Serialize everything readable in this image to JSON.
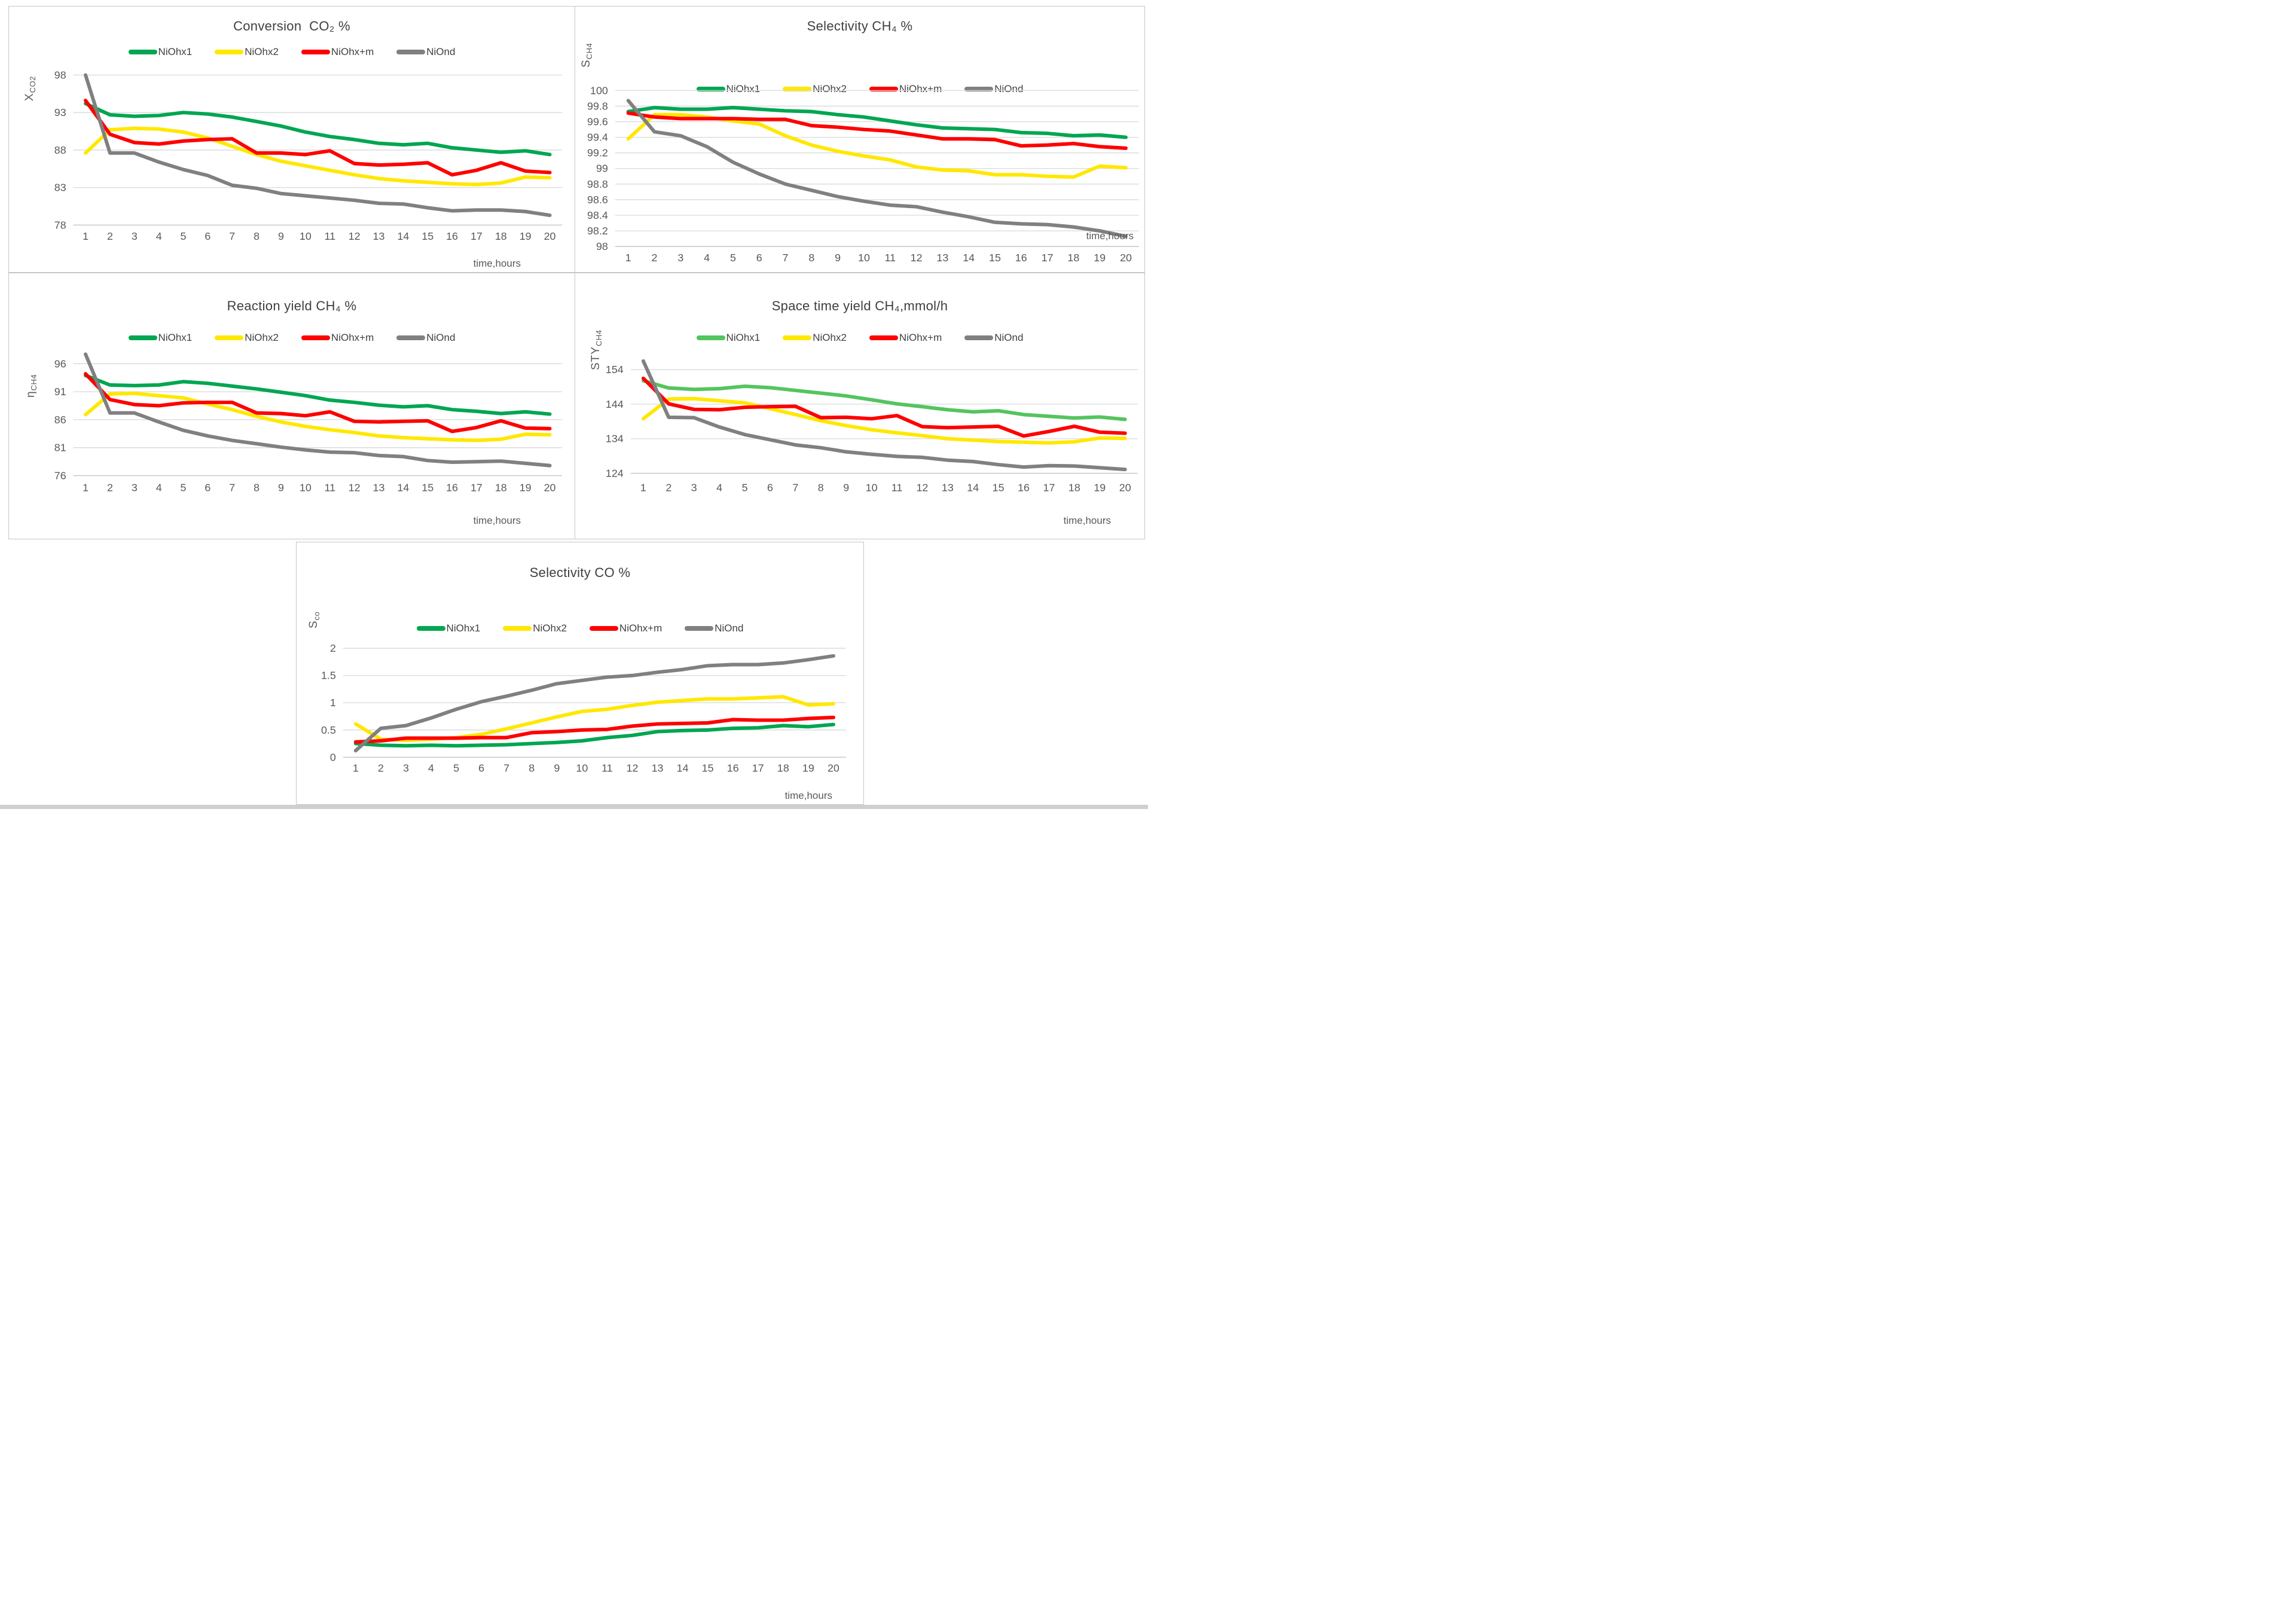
{
  "page": {
    "background": "#ffffff",
    "bottom_strip_color": "#cfcfcf"
  },
  "chart_data": [
    {
      "type": "line",
      "title": "Conversion  CO₂ %",
      "ylabel_main": "X",
      "ylabel_sub": "CO2",
      "xlabel": "time,hours",
      "x": [
        1,
        2,
        3,
        4,
        5,
        6,
        7,
        8,
        9,
        10,
        11,
        12,
        13,
        14,
        15,
        16,
        17,
        18,
        19,
        20
      ],
      "y_ticks": [
        "98",
        "93",
        "88",
        "83",
        "78"
      ],
      "ylim": [
        78,
        98
      ],
      "grid": true,
      "legend_position": "top",
      "series": [
        {
          "name": "NiOhx1",
          "color": "#00A651",
          "values": [
            94.2,
            92.7,
            92.5,
            92.6,
            93.0,
            92.8,
            92.4,
            91.8,
            91.2,
            90.4,
            89.8,
            89.4,
            88.9,
            88.7,
            88.9,
            88.3,
            88.0,
            87.7,
            87.9,
            87.4
          ]
        },
        {
          "name": "NiOhx2",
          "color": "#FFE800",
          "values": [
            87.6,
            90.7,
            90.9,
            90.8,
            90.4,
            89.6,
            88.5,
            87.4,
            86.5,
            85.9,
            85.3,
            84.7,
            84.2,
            83.9,
            83.7,
            83.5,
            83.4,
            83.6,
            84.4,
            84.3
          ]
        },
        {
          "name": "NiOhx+m",
          "color": "#FF0000",
          "values": [
            94.6,
            90.1,
            89.0,
            88.8,
            89.2,
            89.4,
            89.5,
            87.6,
            87.6,
            87.4,
            87.9,
            86.2,
            86.0,
            86.1,
            86.3,
            84.7,
            85.3,
            86.3,
            85.2,
            85.0
          ]
        },
        {
          "name": "NiOnd",
          "color": "#808080",
          "values": [
            98.0,
            87.6,
            87.6,
            86.4,
            85.4,
            84.6,
            83.3,
            82.9,
            82.2,
            81.9,
            81.6,
            81.3,
            80.9,
            80.8,
            80.3,
            79.9,
            80.0,
            80.0,
            79.8,
            79.3
          ]
        }
      ]
    },
    {
      "type": "line",
      "title": "Selectivity CH₄ %",
      "ylabel_main": "S",
      "ylabel_sub": "CH4",
      "xlabel": "time,hours",
      "x": [
        1,
        2,
        3,
        4,
        5,
        6,
        7,
        8,
        9,
        10,
        11,
        12,
        13,
        14,
        15,
        16,
        17,
        18,
        19,
        20
      ],
      "y_ticks": [
        "100",
        "99.8",
        "99.6",
        "99.4",
        "99.2",
        "99",
        "98.8",
        "98.6",
        "98.4",
        "98.2",
        "98"
      ],
      "ylim": [
        98,
        100
      ],
      "grid": true,
      "legend_position": "top",
      "series": [
        {
          "name": "NiOhx1",
          "color": "#00A651",
          "values": [
            99.73,
            99.78,
            99.76,
            99.76,
            99.78,
            99.76,
            99.74,
            99.73,
            99.69,
            99.66,
            99.61,
            99.56,
            99.52,
            99.51,
            99.5,
            99.46,
            99.45,
            99.42,
            99.43,
            99.4
          ]
        },
        {
          "name": "NiOhx2",
          "color": "#FFE800",
          "values": [
            99.38,
            99.69,
            99.69,
            99.66,
            99.61,
            99.57,
            99.42,
            99.3,
            99.22,
            99.16,
            99.11,
            99.02,
            98.98,
            98.97,
            98.92,
            98.92,
            98.9,
            98.89,
            99.03,
            99.01
          ]
        },
        {
          "name": "NiOhx+m",
          "color": "#FF0000",
          "values": [
            99.71,
            99.66,
            99.64,
            99.64,
            99.64,
            99.63,
            99.63,
            99.55,
            99.53,
            99.5,
            99.48,
            99.43,
            99.38,
            99.38,
            99.37,
            99.29,
            99.3,
            99.32,
            99.28,
            99.26
          ]
        },
        {
          "name": "NiOnd",
          "color": "#808080",
          "values": [
            99.87,
            99.47,
            99.42,
            99.28,
            99.08,
            98.93,
            98.8,
            98.72,
            98.64,
            98.58,
            98.53,
            98.51,
            98.44,
            98.38,
            98.31,
            98.29,
            98.28,
            98.25,
            98.2,
            98.13
          ]
        }
      ]
    },
    {
      "type": "line",
      "title": "Reaction yield CH₄ %",
      "ylabel_main": "η",
      "ylabel_sub": "CH4",
      "xlabel": "time,hours",
      "x": [
        1,
        2,
        3,
        4,
        5,
        6,
        7,
        8,
        9,
        10,
        11,
        12,
        13,
        14,
        15,
        16,
        17,
        18,
        19,
        20
      ],
      "y_ticks": [
        "96",
        "91",
        "86",
        "81",
        "76"
      ],
      "ylim": [
        76,
        96
      ],
      "grid": true,
      "legend_position": "top",
      "series": [
        {
          "name": "NiOhx1",
          "color": "#00A651",
          "values": [
            93.9,
            92.2,
            92.1,
            92.2,
            92.8,
            92.5,
            92.0,
            91.5,
            90.9,
            90.3,
            89.5,
            89.1,
            88.6,
            88.3,
            88.5,
            87.8,
            87.5,
            87.1,
            87.4,
            87.0
          ]
        },
        {
          "name": "NiOhx2",
          "color": "#FFE800",
          "values": [
            86.9,
            90.6,
            90.7,
            90.3,
            89.9,
            88.8,
            87.8,
            86.6,
            85.6,
            84.8,
            84.2,
            83.7,
            83.1,
            82.8,
            82.6,
            82.4,
            82.3,
            82.5,
            83.4,
            83.3
          ]
        },
        {
          "name": "NiOhx+m",
          "color": "#FF0000",
          "values": [
            94.2,
            89.6,
            88.7,
            88.5,
            89.0,
            89.1,
            89.1,
            87.2,
            87.1,
            86.7,
            87.4,
            85.7,
            85.6,
            85.7,
            85.8,
            83.9,
            84.6,
            85.8,
            84.5,
            84.4
          ]
        },
        {
          "name": "NiOnd",
          "color": "#808080",
          "values": [
            97.7,
            87.2,
            87.2,
            85.6,
            84.1,
            83.1,
            82.3,
            81.7,
            81.1,
            80.6,
            80.2,
            80.1,
            79.6,
            79.4,
            78.7,
            78.4,
            78.5,
            78.6,
            78.2,
            77.8
          ]
        }
      ]
    },
    {
      "type": "line",
      "title": "Space time yield CH₄,mmol/h",
      "ylabel_main": "STY",
      "ylabel_sub": "CH4",
      "xlabel": "time,hours",
      "x": [
        1,
        2,
        3,
        4,
        5,
        6,
        7,
        8,
        9,
        10,
        11,
        12,
        13,
        14,
        15,
        16,
        17,
        18,
        19,
        20
      ],
      "y_ticks": [
        "154",
        "144",
        "134",
        "124"
      ],
      "ylim": [
        124,
        154
      ],
      "grid": true,
      "legend_position": "top",
      "series": [
        {
          "name": "NiOhx1",
          "color": "#55C45E",
          "values": [
            150.8,
            148.7,
            148.3,
            148.5,
            149.2,
            148.8,
            148.0,
            147.2,
            146.4,
            145.3,
            144.1,
            143.3,
            142.4,
            141.8,
            142.1,
            141.0,
            140.5,
            140.0,
            140.3,
            139.6
          ]
        },
        {
          "name": "NiOhx2",
          "color": "#FFE800",
          "values": [
            139.8,
            145.5,
            145.6,
            145.0,
            144.4,
            142.7,
            141.0,
            139.2,
            137.8,
            136.6,
            135.7,
            134.9,
            134.0,
            133.6,
            133.2,
            133.0,
            132.8,
            133.1,
            134.2,
            134.1
          ]
        },
        {
          "name": "NiOhx+m",
          "color": "#FF0000",
          "values": [
            151.5,
            144.1,
            142.5,
            142.4,
            143.1,
            143.3,
            143.4,
            140.1,
            140.2,
            139.8,
            140.7,
            137.5,
            137.2,
            137.4,
            137.6,
            134.8,
            136.1,
            137.6,
            135.9,
            135.6
          ]
        },
        {
          "name": "NiOnd",
          "color": "#808080",
          "values": [
            156.5,
            140.2,
            140.1,
            137.4,
            135.2,
            133.7,
            132.2,
            131.4,
            130.2,
            129.5,
            128.9,
            128.6,
            127.8,
            127.4,
            126.5,
            125.8,
            126.2,
            126.1,
            125.6,
            125.1
          ]
        }
      ]
    },
    {
      "type": "line",
      "title": "Selectivity CO %",
      "ylabel_main": "S",
      "ylabel_sub": "co",
      "xlabel": "time,hours",
      "x": [
        1,
        2,
        3,
        4,
        5,
        6,
        7,
        8,
        9,
        10,
        11,
        12,
        13,
        14,
        15,
        16,
        17,
        18,
        19,
        20
      ],
      "y_ticks": [
        "2",
        "1.5",
        "1",
        "0.5",
        "0"
      ],
      "ylim": [
        0,
        2
      ],
      "grid": true,
      "legend_position": "top",
      "series": [
        {
          "name": "NiOhx1",
          "color": "#00A651",
          "values": [
            0.25,
            0.22,
            0.21,
            0.22,
            0.21,
            0.22,
            0.23,
            0.25,
            0.27,
            0.3,
            0.36,
            0.4,
            0.47,
            0.49,
            0.5,
            0.53,
            0.54,
            0.58,
            0.56,
            0.6
          ]
        },
        {
          "name": "NiOhx2",
          "color": "#FFE800",
          "values": [
            0.61,
            0.33,
            0.31,
            0.33,
            0.36,
            0.42,
            0.52,
            0.63,
            0.74,
            0.84,
            0.88,
            0.95,
            1.01,
            1.04,
            1.07,
            1.07,
            1.09,
            1.11,
            0.96,
            0.98
          ]
        },
        {
          "name": "NiOhx+m",
          "color": "#FF0000",
          "values": [
            0.28,
            0.3,
            0.35,
            0.35,
            0.35,
            0.36,
            0.36,
            0.45,
            0.47,
            0.5,
            0.51,
            0.57,
            0.61,
            0.62,
            0.63,
            0.69,
            0.68,
            0.68,
            0.71,
            0.73
          ]
        },
        {
          "name": "NiOnd",
          "color": "#808080",
          "values": [
            0.12,
            0.53,
            0.58,
            0.72,
            0.88,
            1.02,
            1.12,
            1.23,
            1.35,
            1.41,
            1.47,
            1.5,
            1.56,
            1.61,
            1.68,
            1.7,
            1.7,
            1.73,
            1.79,
            1.86
          ]
        }
      ]
    }
  ]
}
